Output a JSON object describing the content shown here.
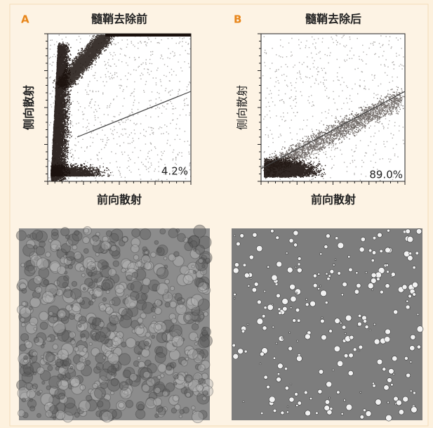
{
  "panels": [
    {
      "label": "A",
      "title": "髓鞘去除前",
      "x_label": "前向散射",
      "y_label": "侧向散射",
      "gate_percent": "4.2%"
    },
    {
      "label": "B",
      "title": "髓鞘去除后",
      "x_label": "前向散射",
      "y_label": "侧向散射",
      "gate_percent": "89.0%"
    }
  ]
}
